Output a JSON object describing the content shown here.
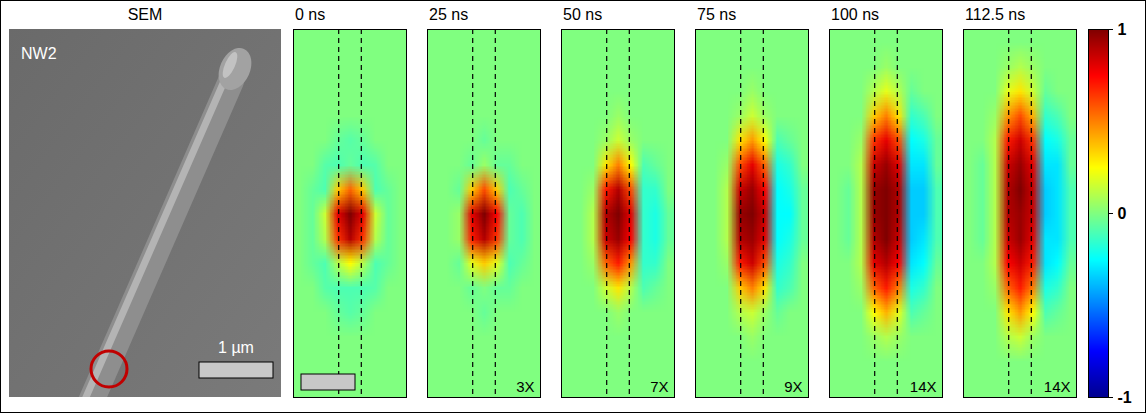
{
  "chart_data": {
    "type": "heatmap",
    "tick_labels": false,
    "xlim": [
      0,
      9
    ],
    "ylim": [
      0,
      15
    ],
    "wire_edges": [
      3.6,
      5.4
    ],
    "colorbar": {
      "range": [
        -1,
        1
      ],
      "ticks": [
        1,
        0,
        -1
      ],
      "colors": [
        "#00008f",
        "#0000ff",
        "#0080ff",
        "#00ffff",
        "#80ff80",
        "#ffff00",
        "#ff8000",
        "#ff0000",
        "#800000"
      ]
    },
    "panels": [
      {
        "title": "0 ns",
        "cells": [
          [
            0,
            0,
            0,
            0,
            0,
            0,
            0,
            0,
            0
          ],
          [
            0,
            0,
            0,
            0,
            0,
            0,
            0,
            0,
            0
          ],
          [
            0,
            0,
            0,
            0,
            0,
            0,
            0,
            0,
            0
          ],
          [
            0,
            0,
            0,
            0,
            0,
            0,
            0,
            0,
            0
          ],
          [
            0,
            0,
            0,
            -0.05,
            -0.08,
            -0.05,
            0,
            0,
            0
          ],
          [
            0,
            0,
            -0.08,
            -0.1,
            -0.05,
            -0.1,
            -0.08,
            0,
            0
          ],
          [
            0,
            -0.05,
            -0.1,
            0.35,
            0.55,
            0.35,
            -0.1,
            -0.05,
            0
          ],
          [
            0,
            -0.05,
            0.15,
            0.8,
            1,
            0.8,
            0.15,
            -0.05,
            0
          ],
          [
            0,
            -0.05,
            0.1,
            0.65,
            0.9,
            0.65,
            0.1,
            -0.05,
            0
          ],
          [
            0,
            -0.05,
            -0.1,
            0.1,
            0.25,
            0.1,
            -0.1,
            -0.05,
            0
          ],
          [
            0,
            0,
            -0.08,
            -0.1,
            -0.1,
            -0.1,
            -0.08,
            0,
            0
          ],
          [
            0,
            0,
            0,
            -0.05,
            -0.08,
            -0.05,
            0,
            0,
            0
          ],
          [
            0,
            0,
            0,
            0,
            0,
            0,
            0,
            0,
            0
          ],
          [
            0,
            0,
            0,
            0,
            0,
            0,
            0,
            0,
            0
          ],
          [
            0,
            0,
            0,
            0,
            0,
            0,
            0,
            0,
            0
          ]
        ]
      },
      {
        "title": "25 ns",
        "annotation": "3X",
        "cells": [
          [
            0,
            0,
            0,
            0,
            0,
            0,
            0,
            0,
            0
          ],
          [
            0,
            0,
            0,
            0,
            0,
            0,
            0,
            0,
            0
          ],
          [
            0,
            0,
            0,
            0,
            0,
            0,
            0,
            0,
            0
          ],
          [
            0,
            0,
            0,
            0,
            0,
            0,
            0,
            0,
            0
          ],
          [
            0,
            0,
            0,
            0,
            -0.05,
            0,
            0,
            0,
            0
          ],
          [
            0,
            0,
            0,
            -0.05,
            0.05,
            -0.05,
            -0.05,
            0,
            0
          ],
          [
            0,
            0,
            -0.05,
            0.35,
            0.6,
            0.35,
            -0.1,
            -0.05,
            0
          ],
          [
            0,
            0,
            0.05,
            0.8,
            1,
            0.75,
            -0.05,
            -0.1,
            0
          ],
          [
            0,
            0,
            0.05,
            0.7,
            0.9,
            0.65,
            -0.05,
            -0.1,
            0
          ],
          [
            0,
            0,
            -0.05,
            0.2,
            0.35,
            0.2,
            -0.1,
            -0.05,
            0
          ],
          [
            0,
            0,
            0,
            -0.05,
            0,
            -0.05,
            -0.05,
            0,
            0
          ],
          [
            0,
            0,
            0,
            0,
            -0.05,
            0,
            0,
            0,
            0
          ],
          [
            0,
            0,
            0,
            0,
            0,
            0,
            0,
            0,
            0
          ],
          [
            0,
            0,
            0,
            0,
            0,
            0,
            0,
            0,
            0
          ],
          [
            0,
            0,
            0,
            0,
            0,
            0,
            0,
            0,
            0
          ]
        ]
      },
      {
        "title": "50 ns",
        "annotation": "7X",
        "cells": [
          [
            0,
            0,
            0,
            0,
            0,
            0,
            0,
            0,
            0
          ],
          [
            0,
            0,
            0,
            0,
            0,
            0,
            0,
            0,
            0
          ],
          [
            0,
            0,
            0,
            0,
            0,
            0,
            0,
            0,
            0
          ],
          [
            0,
            0,
            0,
            0,
            0.05,
            0,
            0,
            0,
            0
          ],
          [
            0,
            0,
            0,
            0.05,
            0.15,
            0.05,
            0,
            0,
            0
          ],
          [
            0,
            0,
            0,
            0.3,
            0.5,
            0.25,
            -0.1,
            -0.05,
            0
          ],
          [
            0,
            0,
            0.05,
            0.7,
            0.9,
            0.6,
            -0.15,
            -0.15,
            0
          ],
          [
            0,
            0,
            0.1,
            0.9,
            1,
            0.8,
            -0.15,
            -0.2,
            -0.05
          ],
          [
            0,
            0,
            0.1,
            0.85,
            0.95,
            0.75,
            -0.15,
            -0.2,
            -0.05
          ],
          [
            0,
            0,
            0.05,
            0.55,
            0.7,
            0.45,
            -0.15,
            -0.15,
            0
          ],
          [
            0,
            0,
            0,
            0.15,
            0.3,
            0.1,
            -0.1,
            -0.05,
            0
          ],
          [
            0,
            0,
            0,
            0,
            0.05,
            0,
            0,
            0,
            0
          ],
          [
            0,
            0,
            0,
            0,
            0,
            0,
            0,
            0,
            0
          ],
          [
            0,
            0,
            0,
            0,
            0,
            0,
            0,
            0,
            0
          ],
          [
            0,
            0,
            0,
            0,
            0,
            0,
            0,
            0,
            0
          ]
        ]
      },
      {
        "title": "75 ns",
        "annotation": "9X",
        "cells": [
          [
            0,
            0,
            0,
            0,
            0,
            0,
            0,
            0,
            0
          ],
          [
            0,
            0,
            0,
            0,
            0,
            0,
            0,
            0,
            0
          ],
          [
            0,
            0,
            0,
            0,
            0.05,
            0,
            0,
            0,
            0
          ],
          [
            0,
            0,
            0,
            0.05,
            0.15,
            0.05,
            0,
            0,
            0
          ],
          [
            0,
            0,
            0,
            0.3,
            0.45,
            0.25,
            -0.1,
            -0.05,
            0
          ],
          [
            0,
            0,
            0.05,
            0.6,
            0.8,
            0.55,
            -0.2,
            -0.15,
            0
          ],
          [
            0,
            0,
            0.1,
            0.85,
            0.95,
            0.75,
            -0.25,
            -0.2,
            -0.05
          ],
          [
            0,
            0,
            0.1,
            0.95,
            1,
            0.85,
            -0.25,
            -0.25,
            -0.05
          ],
          [
            0,
            0,
            0.1,
            0.9,
            0.95,
            0.8,
            -0.25,
            -0.2,
            -0.05
          ],
          [
            0,
            0,
            0.05,
            0.7,
            0.85,
            0.6,
            -0.2,
            -0.15,
            0
          ],
          [
            0,
            0,
            0,
            0.35,
            0.5,
            0.3,
            -0.15,
            -0.1,
            0
          ],
          [
            0,
            0,
            0,
            0.1,
            0.15,
            0.05,
            -0.05,
            0,
            0
          ],
          [
            0,
            0,
            0,
            0,
            0.05,
            0,
            0,
            0,
            0
          ],
          [
            0,
            0,
            0,
            0,
            0,
            0,
            0,
            0,
            0
          ],
          [
            0,
            0,
            0,
            0,
            0,
            0,
            0,
            0,
            0
          ]
        ]
      },
      {
        "title": "100 ns",
        "annotation": "14X",
        "cells": [
          [
            0,
            0,
            0,
            0,
            0,
            0,
            0,
            0,
            0
          ],
          [
            0,
            0,
            0,
            0,
            0.05,
            0,
            0,
            0,
            0
          ],
          [
            0,
            0,
            0,
            0.1,
            0.2,
            0.1,
            -0.05,
            0,
            0
          ],
          [
            0,
            0,
            0,
            0.35,
            0.5,
            0.3,
            -0.15,
            -0.1,
            0
          ],
          [
            0,
            0,
            0.05,
            0.65,
            0.8,
            0.6,
            -0.25,
            -0.2,
            -0.05
          ],
          [
            0,
            0,
            0.1,
            0.85,
            0.95,
            0.8,
            -0.3,
            -0.3,
            -0.05
          ],
          [
            0,
            -0.05,
            0.1,
            0.95,
            1,
            0.9,
            -0.35,
            -0.35,
            -0.1
          ],
          [
            0,
            -0.05,
            0.1,
            0.95,
            1,
            0.9,
            -0.35,
            -0.35,
            -0.1
          ],
          [
            0,
            -0.05,
            0.1,
            0.9,
            1,
            0.85,
            -0.35,
            -0.3,
            -0.1
          ],
          [
            0,
            0,
            0.1,
            0.8,
            0.9,
            0.75,
            -0.3,
            -0.25,
            -0.05
          ],
          [
            0,
            0,
            0.05,
            0.55,
            0.7,
            0.5,
            -0.2,
            -0.15,
            0
          ],
          [
            0,
            0,
            0,
            0.25,
            0.4,
            0.2,
            -0.1,
            -0.05,
            0
          ],
          [
            0,
            0,
            0,
            0.05,
            0.1,
            0.05,
            0,
            0,
            0
          ],
          [
            0,
            0,
            0,
            0,
            0,
            0,
            0,
            0,
            0
          ],
          [
            0,
            0,
            0,
            0,
            0,
            0,
            0,
            0,
            0
          ]
        ]
      },
      {
        "title": "112.5 ns",
        "annotation": "14X",
        "cells": [
          [
            0,
            0,
            0,
            0,
            0,
            0,
            0,
            0,
            0
          ],
          [
            0,
            0,
            0,
            0.05,
            0.1,
            0.05,
            0,
            0,
            0
          ],
          [
            0,
            0,
            0,
            0.2,
            0.3,
            0.15,
            -0.05,
            0,
            0
          ],
          [
            0,
            0,
            0.05,
            0.45,
            0.6,
            0.4,
            -0.15,
            -0.1,
            0
          ],
          [
            0,
            0,
            0.1,
            0.7,
            0.85,
            0.65,
            -0.25,
            -0.2,
            -0.05
          ],
          [
            0,
            -0.05,
            0.1,
            0.85,
            0.95,
            0.8,
            -0.3,
            -0.3,
            -0.05
          ],
          [
            0,
            -0.05,
            0.1,
            0.9,
            1,
            0.85,
            -0.35,
            -0.3,
            -0.1
          ],
          [
            0,
            -0.05,
            0.1,
            0.9,
            0.95,
            0.85,
            -0.35,
            -0.3,
            -0.1
          ],
          [
            0,
            -0.05,
            0.1,
            0.85,
            0.95,
            0.8,
            -0.3,
            -0.3,
            -0.1
          ],
          [
            0,
            0,
            0.1,
            0.75,
            0.85,
            0.7,
            -0.3,
            -0.25,
            -0.05
          ],
          [
            0,
            0,
            0.05,
            0.55,
            0.7,
            0.5,
            -0.2,
            -0.15,
            0
          ],
          [
            0,
            0,
            0,
            0.3,
            0.45,
            0.25,
            -0.1,
            -0.05,
            0
          ],
          [
            0,
            0,
            0,
            0.1,
            0.15,
            0.05,
            0,
            0,
            0
          ],
          [
            0,
            0,
            0,
            0,
            0,
            0,
            0,
            0,
            0
          ],
          [
            0,
            0,
            0,
            0,
            0,
            0,
            0,
            0,
            0
          ]
        ]
      }
    ]
  },
  "sem_image": {
    "title": "SEM",
    "label": "NW2",
    "scale_bar_label": "1 µm"
  }
}
